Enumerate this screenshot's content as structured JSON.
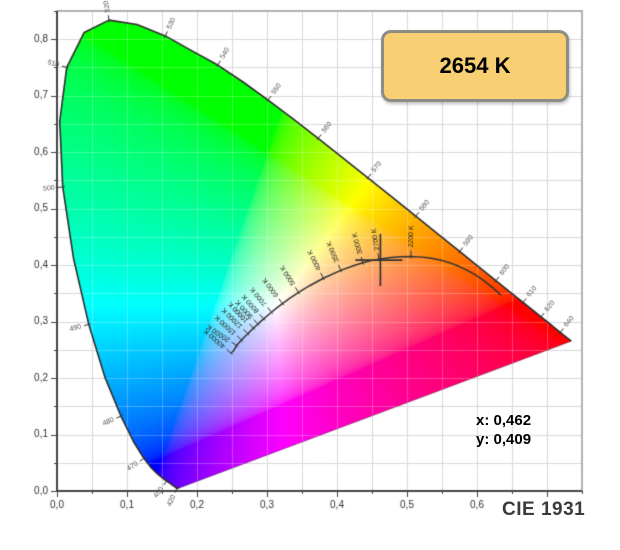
{
  "badge": {
    "label": "2654 K",
    "fill": "#f8cf72",
    "border": "#8d8d85"
  },
  "readout": {
    "x": "x: 0,462",
    "y": "y: 0,409"
  },
  "footer": {
    "title": "CIE 1931"
  },
  "chart_data": {
    "type": "scatter",
    "subtype": "cie-1931-chromaticity-diagram",
    "title": "CIE 1931",
    "xlabel": "",
    "ylabel": "",
    "xlim": [
      0,
      0.75
    ],
    "ylim": [
      0,
      0.85
    ],
    "grid_step": 0.05,
    "grid_on": true,
    "x_ticks": [
      {
        "v": 0.0,
        "label": "0,0"
      },
      {
        "v": 0.1,
        "label": "0,1"
      },
      {
        "v": 0.2,
        "label": "0,2"
      },
      {
        "v": 0.3,
        "label": "0,3"
      },
      {
        "v": 0.4,
        "label": "0,4"
      },
      {
        "v": 0.5,
        "label": "0,5"
      },
      {
        "v": 0.6,
        "label": "0,6"
      }
    ],
    "y_ticks": [
      {
        "v": 0.0,
        "label": "0,0"
      },
      {
        "v": 0.1,
        "label": "0,1"
      },
      {
        "v": 0.2,
        "label": "0,2"
      },
      {
        "v": 0.3,
        "label": "0,3"
      },
      {
        "v": 0.4,
        "label": "0,4"
      },
      {
        "v": 0.5,
        "label": "0,5"
      },
      {
        "v": 0.6,
        "label": "0,6"
      },
      {
        "v": 0.7,
        "label": "0,7"
      },
      {
        "v": 0.8,
        "label": "0,8"
      }
    ],
    "marker": {
      "x": 0.462,
      "y": 0.409,
      "cct": "2654 K"
    },
    "spectral_locus": [
      [
        380,
        0.1741,
        0.005
      ],
      [
        385,
        0.174,
        0.005
      ],
      [
        390,
        0.1738,
        0.0049
      ],
      [
        395,
        0.1736,
        0.0049
      ],
      [
        400,
        0.1733,
        0.0048
      ],
      [
        405,
        0.173,
        0.0048
      ],
      [
        410,
        0.1726,
        0.0048
      ],
      [
        415,
        0.1721,
        0.0048
      ],
      [
        420,
        0.1714,
        0.0051
      ],
      [
        425,
        0.1703,
        0.0058
      ],
      [
        430,
        0.1689,
        0.0069
      ],
      [
        435,
        0.1669,
        0.0086
      ],
      [
        440,
        0.1644,
        0.0109
      ],
      [
        445,
        0.1611,
        0.0138
      ],
      [
        450,
        0.1566,
        0.0177
      ],
      [
        455,
        0.151,
        0.0227
      ],
      [
        460,
        0.144,
        0.0297
      ],
      [
        465,
        0.1355,
        0.0399
      ],
      [
        470,
        0.1241,
        0.0578
      ],
      [
        475,
        0.1096,
        0.0868
      ],
      [
        480,
        0.0913,
        0.1327
      ],
      [
        485,
        0.0687,
        0.2007
      ],
      [
        490,
        0.0454,
        0.295
      ],
      [
        495,
        0.0235,
        0.4127
      ],
      [
        500,
        0.0082,
        0.5384
      ],
      [
        505,
        0.0039,
        0.6548
      ],
      [
        510,
        0.0139,
        0.7502
      ],
      [
        515,
        0.0389,
        0.812
      ],
      [
        520,
        0.0743,
        0.8338
      ],
      [
        525,
        0.1142,
        0.8262
      ],
      [
        530,
        0.1547,
        0.8059
      ],
      [
        535,
        0.1896,
        0.7816
      ],
      [
        540,
        0.2296,
        0.7543
      ],
      [
        545,
        0.2658,
        0.7243
      ],
      [
        550,
        0.3016,
        0.6923
      ],
      [
        555,
        0.3373,
        0.6589
      ],
      [
        560,
        0.3731,
        0.6245
      ],
      [
        565,
        0.4087,
        0.5896
      ],
      [
        570,
        0.4441,
        0.5547
      ],
      [
        575,
        0.4788,
        0.5202
      ],
      [
        580,
        0.5125,
        0.4866
      ],
      [
        585,
        0.5448,
        0.4544
      ],
      [
        590,
        0.5752,
        0.4242
      ],
      [
        595,
        0.6029,
        0.3965
      ],
      [
        600,
        0.627,
        0.3725
      ],
      [
        605,
        0.6482,
        0.3514
      ],
      [
        610,
        0.6658,
        0.334
      ],
      [
        615,
        0.6801,
        0.3197
      ],
      [
        620,
        0.6915,
        0.3083
      ],
      [
        625,
        0.7006,
        0.2993
      ],
      [
        630,
        0.7079,
        0.292
      ],
      [
        635,
        0.714,
        0.2859
      ],
      [
        640,
        0.719,
        0.2809
      ],
      [
        645,
        0.723,
        0.277
      ],
      [
        650,
        0.726,
        0.274
      ],
      [
        655,
        0.7283,
        0.2717
      ],
      [
        660,
        0.73,
        0.27
      ],
      [
        665,
        0.7311,
        0.2689
      ],
      [
        670,
        0.732,
        0.268
      ],
      [
        675,
        0.7327,
        0.2673
      ],
      [
        680,
        0.7334,
        0.2666
      ],
      [
        685,
        0.734,
        0.266
      ],
      [
        690,
        0.7344,
        0.2656
      ],
      [
        700,
        0.7347,
        0.2653
      ]
    ],
    "wavelength_labels": [
      420,
      450,
      470,
      480,
      490,
      500,
      510,
      520,
      530,
      540,
      550,
      560,
      570,
      580,
      590,
      600,
      610,
      620,
      640
    ],
    "planckian_locus": [
      [
        40000,
        0.2487,
        0.2438
      ],
      [
        30000,
        0.2511,
        0.2471
      ],
      [
        25000,
        0.2531,
        0.25
      ],
      [
        20000,
        0.2565,
        0.2577
      ],
      [
        17000,
        0.2595,
        0.2617
      ],
      [
        15000,
        0.2637,
        0.2673
      ],
      [
        13000,
        0.268,
        0.273
      ],
      [
        12000,
        0.2726,
        0.2786
      ],
      [
        11000,
        0.2761,
        0.283
      ],
      [
        10000,
        0.2807,
        0.2884
      ],
      [
        9500,
        0.2836,
        0.2918
      ],
      [
        9000,
        0.2869,
        0.2956
      ],
      [
        8500,
        0.2908,
        0.3
      ],
      [
        8000,
        0.2952,
        0.3048
      ],
      [
        7500,
        0.3004,
        0.3103
      ],
      [
        7000,
        0.3064,
        0.3166
      ],
      [
        6500,
        0.3135,
        0.3237
      ],
      [
        6000,
        0.3221,
        0.3318
      ],
      [
        5500,
        0.3324,
        0.341
      ],
      [
        5000,
        0.3451,
        0.3516
      ],
      [
        4500,
        0.3608,
        0.3635
      ],
      [
        4000,
        0.3805,
        0.3768
      ],
      [
        3500,
        0.4053,
        0.3907
      ],
      [
        3200,
        0.4234,
        0.399
      ],
      [
        3000,
        0.4369,
        0.4041
      ],
      [
        2850,
        0.4475,
        0.4075
      ],
      [
        2700,
        0.4599,
        0.4106
      ],
      [
        2500,
        0.477,
        0.4137
      ],
      [
        2350,
        0.491,
        0.415
      ],
      [
        2200,
        0.5056,
        0.4152
      ],
      [
        2100,
        0.516,
        0.4146
      ],
      [
        2000,
        0.5267,
        0.4133
      ],
      [
        1900,
        0.5385,
        0.4112
      ],
      [
        1800,
        0.5503,
        0.408
      ],
      [
        1700,
        0.5622,
        0.4036
      ],
      [
        1600,
        0.5742,
        0.3979
      ],
      [
        1500,
        0.5862,
        0.3908
      ],
      [
        1400,
        0.5982,
        0.3822
      ],
      [
        1300,
        0.6102,
        0.3721
      ],
      [
        1200,
        0.6222,
        0.3603
      ],
      [
        1100,
        0.6342,
        0.3468
      ]
    ],
    "temperature_labels": [
      {
        "T": 40000,
        "label": "40000 K"
      },
      {
        "T": 20000,
        "label": "20000 K"
      },
      {
        "T": 15000,
        "label": "15000 K"
      },
      {
        "T": 12000,
        "label": "12000 K"
      },
      {
        "T": 10000,
        "label": "10000 K"
      },
      {
        "T": 9000,
        "label": "9000 K"
      },
      {
        "T": 8000,
        "label": "8000 K"
      },
      {
        "T": 7000,
        "label": "7000 K"
      },
      {
        "T": 6000,
        "label": "6000 K"
      },
      {
        "T": 5000,
        "label": "5000 K"
      },
      {
        "T": 4000,
        "label": "4000 K"
      },
      {
        "T": 3500,
        "label": "3500 K"
      },
      {
        "T": 3000,
        "label": "3000 K"
      },
      {
        "T": 2700,
        "label": "2700 K"
      },
      {
        "T": 2200,
        "label": "2200 K"
      }
    ],
    "colors": {
      "grid": "#d9d9d9",
      "grid_over_fill": "rgba(255,255,255,0.25)",
      "frame": "#999999",
      "axis": "#444444",
      "locus_stroke": "#2e2e2e",
      "purple_line_stroke": "rgba(60,60,60,0.4)",
      "planckian_curve": "#333333",
      "marker": "#333333",
      "axis_label": "#333333",
      "wavelength_label": "#555555",
      "temperature_label": "#222222"
    }
  }
}
